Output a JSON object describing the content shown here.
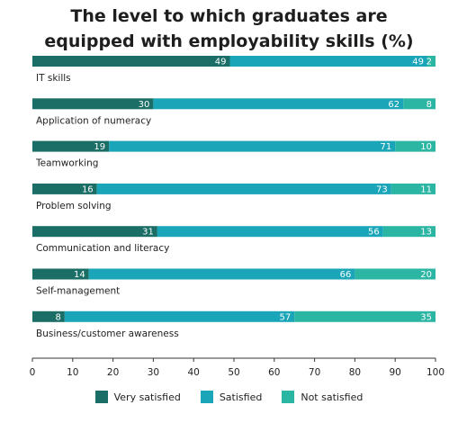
{
  "chart_data": {
    "type": "bar",
    "title": "The level to which graduates are equipped with employability skills (%)",
    "title_lines": [
      "The level to which graduates are",
      "equipped with employability skills (%)"
    ],
    "categories": [
      "IT skills",
      "Application of numeracy",
      "Teamworking",
      "Problem solving",
      "Communication and literacy",
      "Self-management",
      "Business/customer awareness"
    ],
    "series": [
      {
        "name": "Very satisfied",
        "color": "#1a6e66",
        "values": [
          49,
          30,
          19,
          16,
          31,
          14,
          8
        ]
      },
      {
        "name": "Satisfied",
        "color": "#1aa6b8",
        "values": [
          49,
          62,
          71,
          73,
          56,
          66,
          57
        ]
      },
      {
        "name": "Not satisfied",
        "color": "#2bb5a3",
        "values": [
          2,
          8,
          10,
          11,
          13,
          20,
          35
        ]
      }
    ],
    "stacked": true,
    "orientation": "horizontal",
    "xlim": [
      0,
      100
    ],
    "xticks": [
      0,
      10,
      20,
      30,
      40,
      50,
      60,
      70,
      80,
      90,
      100
    ],
    "legend_position": "bottom",
    "grid": false
  }
}
